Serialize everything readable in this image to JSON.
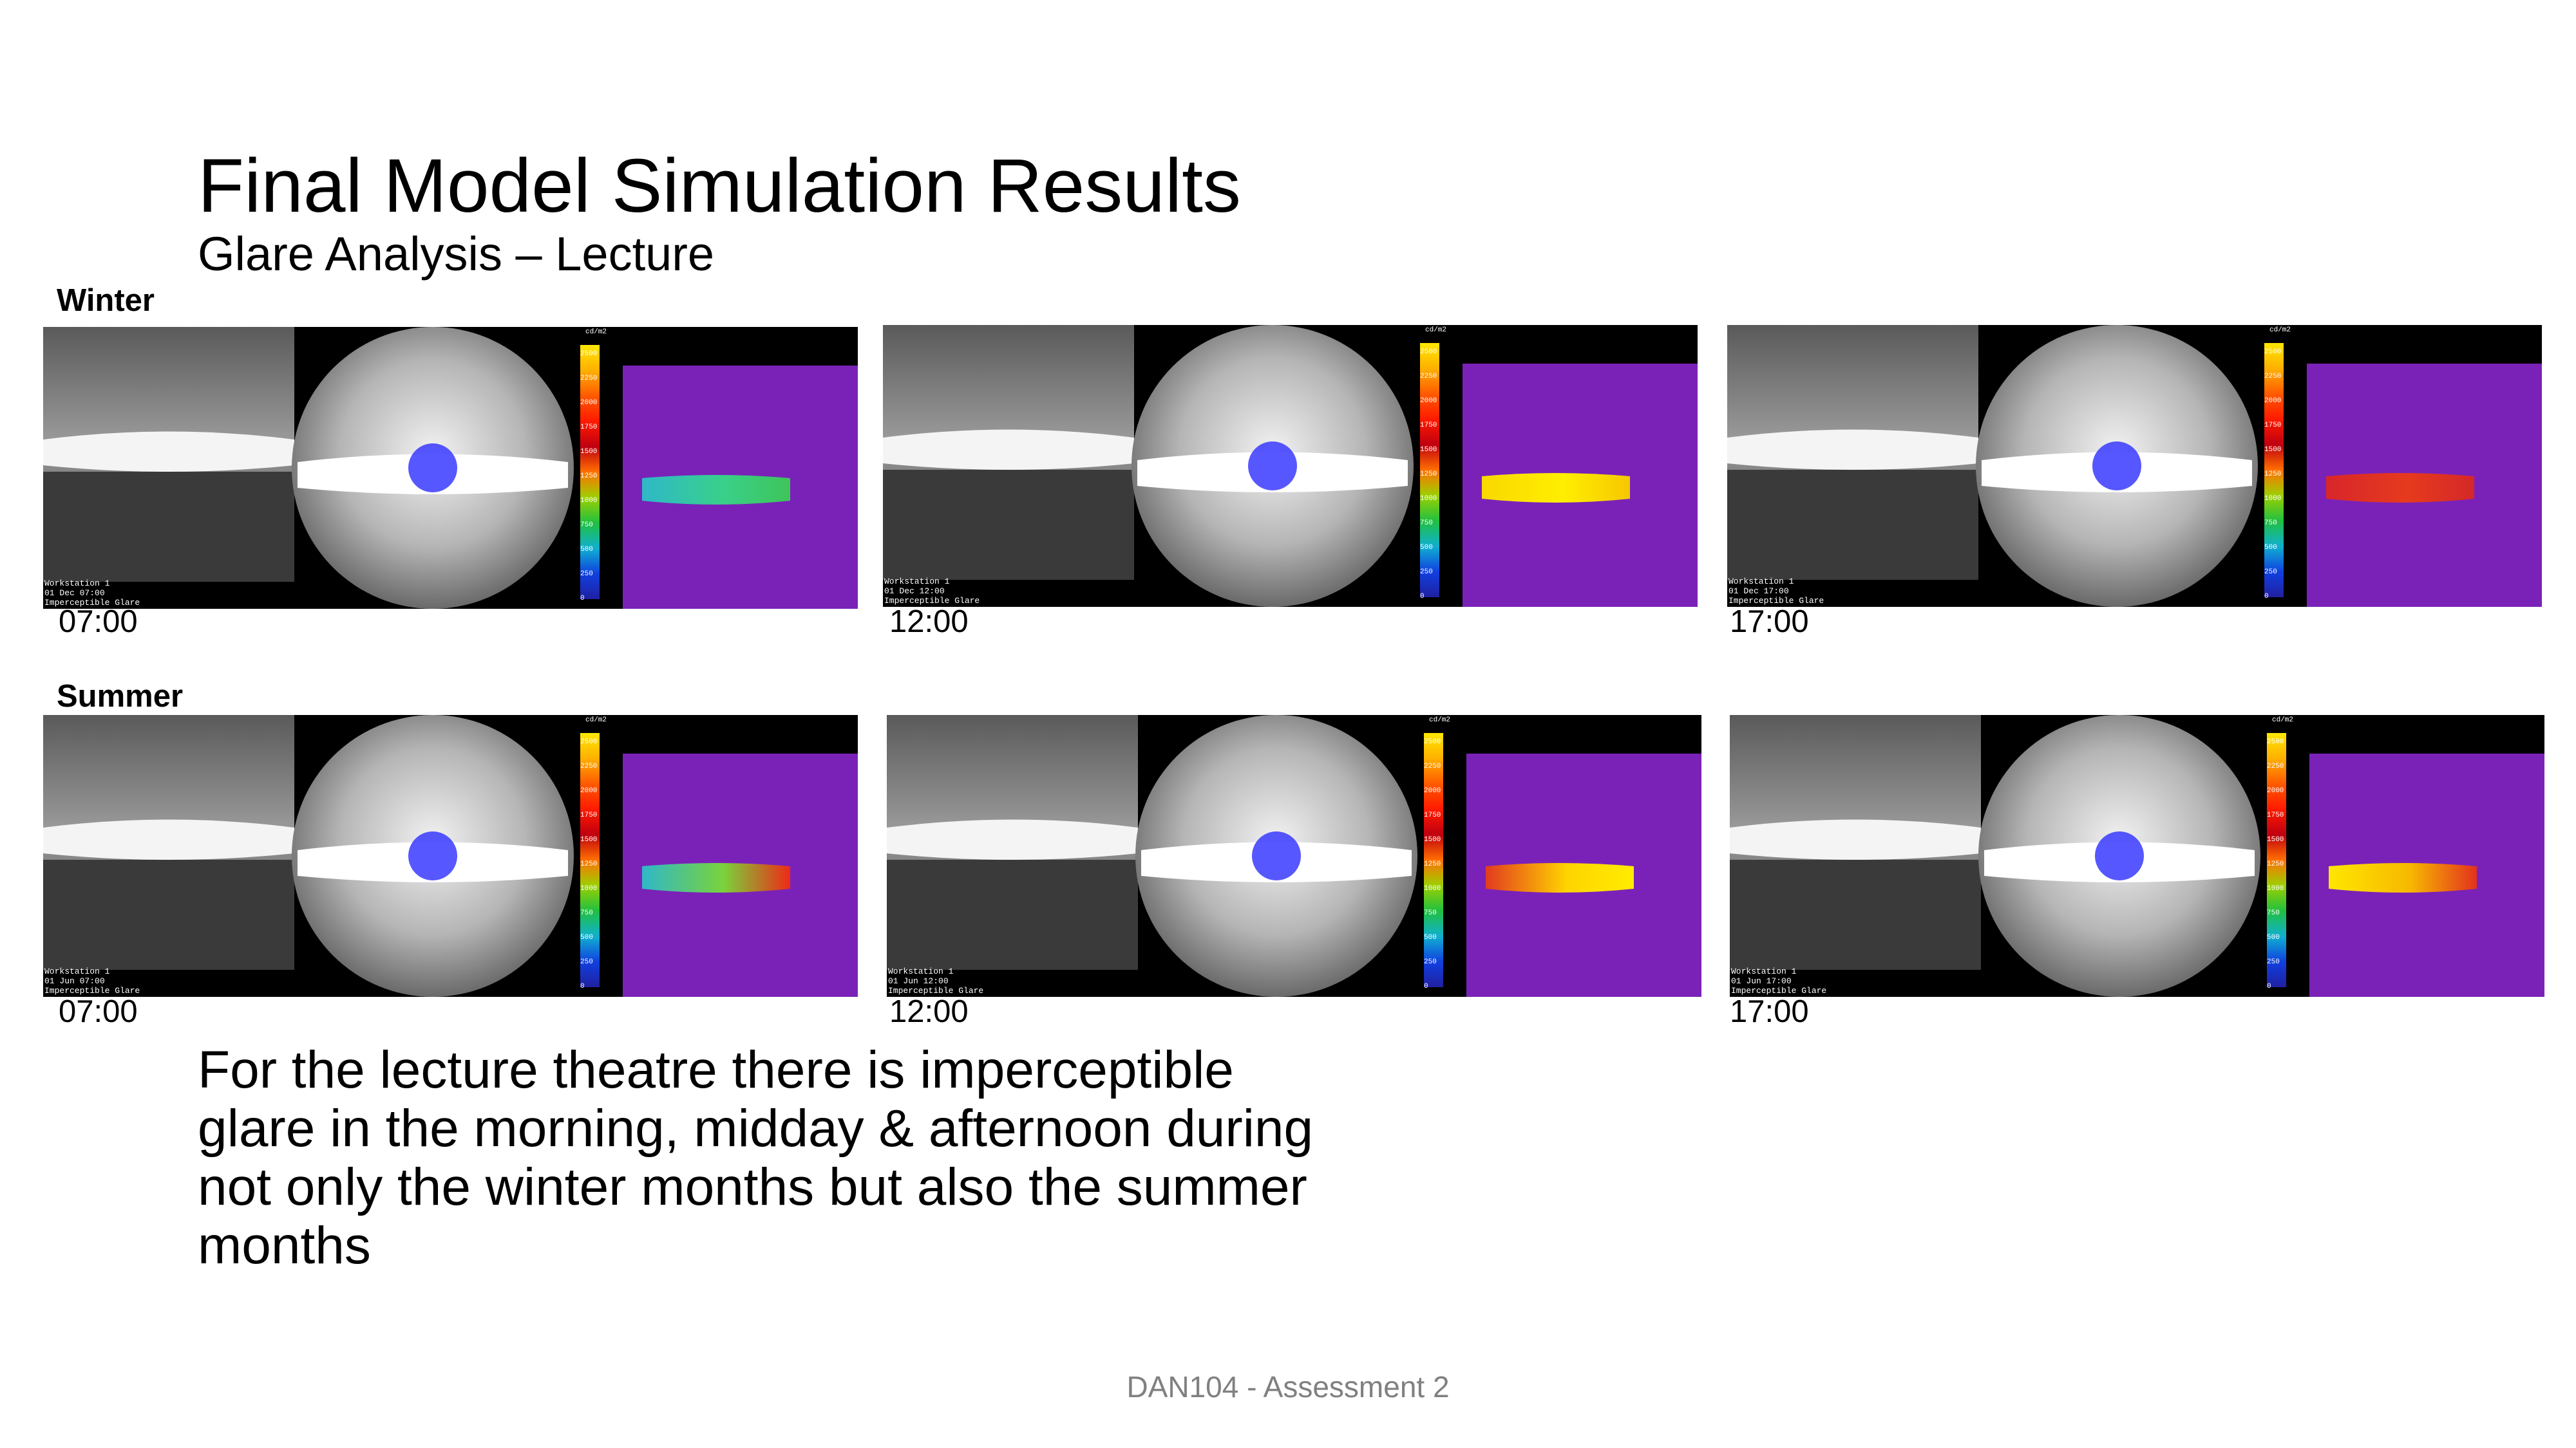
{
  "title": "Final Model Simulation Results",
  "subtitle": "Glare Analysis – Lecture",
  "seasons": [
    {
      "label": "Winter",
      "panels": [
        {
          "time": "07:00",
          "overlay": [
            "Workstation 1",
            "01 Dec 07:00",
            "Imperceptible Glare"
          ],
          "heat": "cyan-green"
        },
        {
          "time": "12:00",
          "overlay": [
            "Workstation 1",
            "01 Dec 12:00",
            "Imperceptible Glare"
          ],
          "heat": "yellow"
        },
        {
          "time": "17:00",
          "overlay": [
            "Workstation 1",
            "01 Dec 17:00",
            "Imperceptible Glare"
          ],
          "heat": "red"
        }
      ]
    },
    {
      "label": "Summer",
      "panels": [
        {
          "time": "07:00",
          "overlay": [
            "Workstation 1",
            "01 Jun 07:00",
            "Imperceptible Glare"
          ],
          "heat": "cyan-to-red"
        },
        {
          "time": "12:00",
          "overlay": [
            "Workstation 1",
            "01 Jun 12:00",
            "Imperceptible Glare"
          ],
          "heat": "red-yellow"
        },
        {
          "time": "17:00",
          "overlay": [
            "Workstation 1",
            "01 Jun 17:00",
            "Imperceptible Glare"
          ],
          "heat": "yellow-red"
        }
      ]
    }
  ],
  "legend": {
    "unit": "cd/m2",
    "ticks": [
      "2500",
      "2250",
      "2000",
      "1750",
      "1500",
      "1250",
      "1000",
      "750",
      "500",
      "250",
      "0"
    ]
  },
  "body_text": "For the lecture theatre there is imperceptible glare in the morning, midday & afternoon during not only the winter months but also the summer months",
  "footer": "DAN104 - Assessment 2",
  "colors": {
    "heat_background": "#7a22b8",
    "glare_source": "#3a3aff",
    "footer_text": "#808080"
  }
}
